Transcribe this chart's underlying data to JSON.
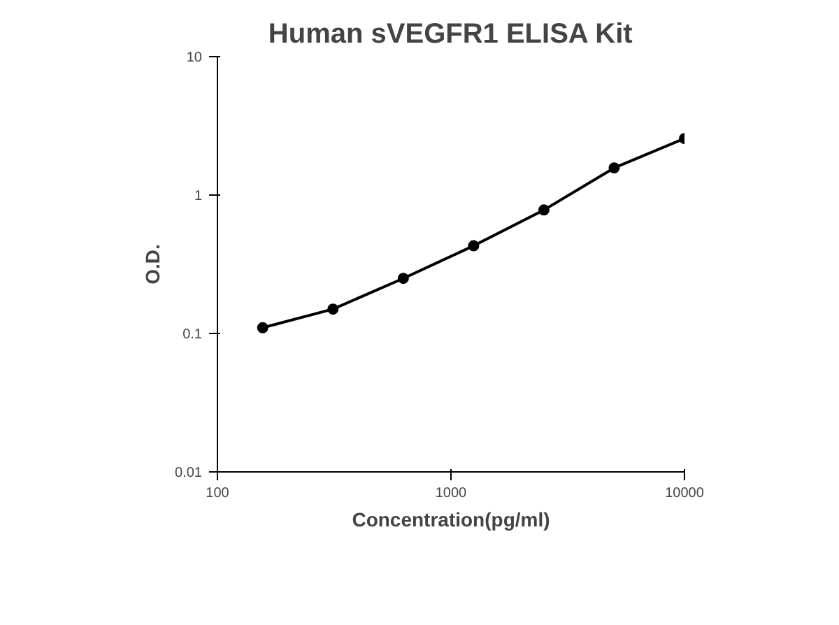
{
  "chart_data": {
    "type": "scatter",
    "title": "Human sVEGFR1 ELISA Kit",
    "xlabel": "Concentration(pg/ml)",
    "ylabel": "O.D.",
    "log": "xy",
    "xlim": [
      100,
      10000
    ],
    "ylim": [
      0.01,
      10
    ],
    "xticks": [
      100,
      1000,
      10000
    ],
    "yticks": [
      0.01,
      0.1,
      1,
      10
    ],
    "grid": false,
    "series": [
      {
        "color": "#000000",
        "marker": "circle",
        "x": [
          156.25,
          312.5,
          625,
          1250,
          2500,
          5000,
          10000
        ],
        "values": [
          0.11,
          0.15,
          0.25,
          0.43,
          0.78,
          1.57,
          2.56
        ]
      },
      {
        "type": "line",
        "color": "#000000",
        "line_style": "solid",
        "x": [
          156.25,
          312.5,
          625,
          1250,
          2500,
          5000,
          10000
        ],
        "values": [
          0.11,
          0.15,
          0.25,
          0.43,
          0.78,
          1.57,
          2.56
        ]
      }
    ]
  }
}
